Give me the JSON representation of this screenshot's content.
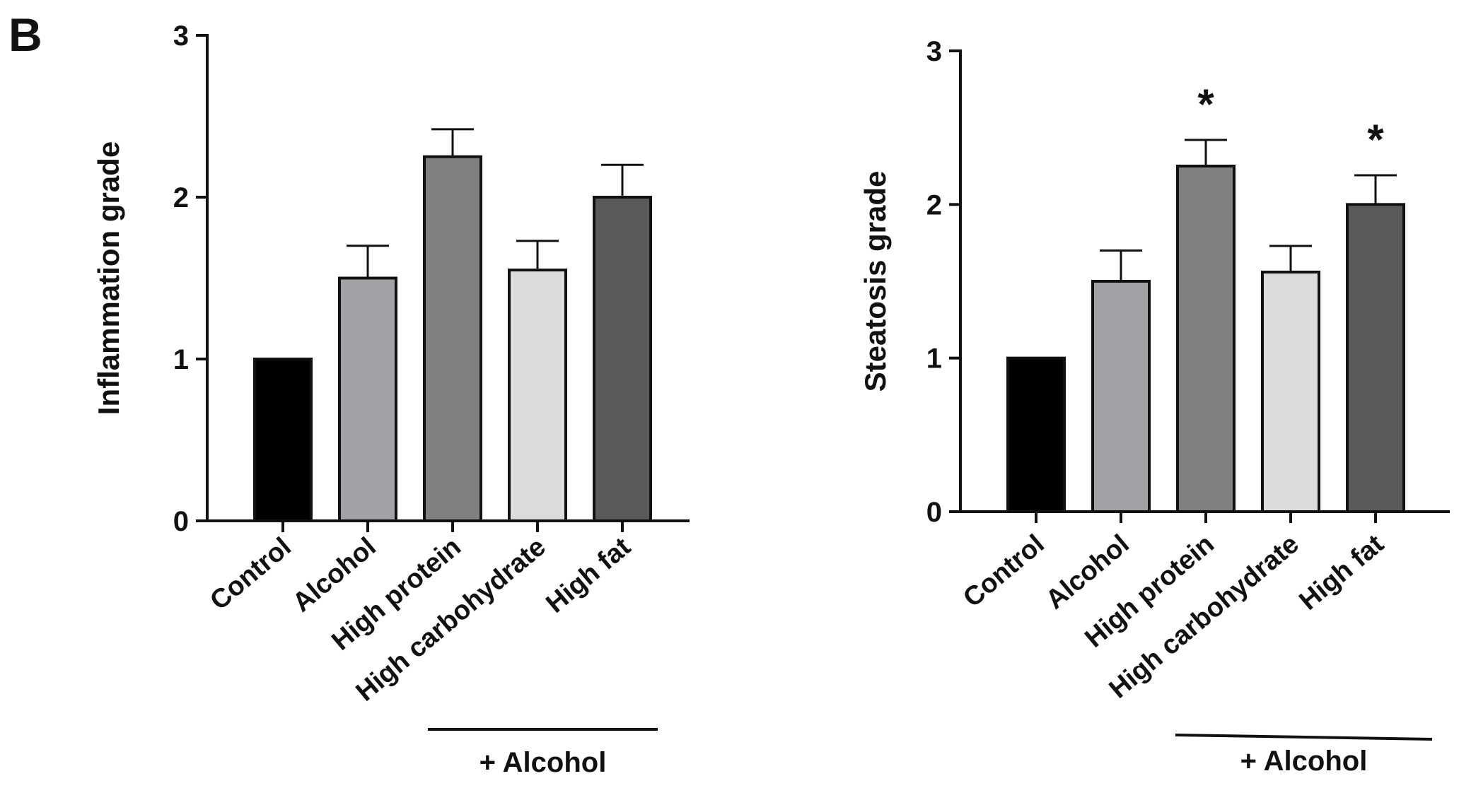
{
  "panel_label": "B",
  "chart_data": [
    {
      "type": "bar",
      "title": "",
      "xlabel": "",
      "ylabel": "Inflammation grade",
      "ylim": [
        0,
        3
      ],
      "yticks": [
        "0",
        "1",
        "2",
        "3"
      ],
      "categories": [
        "Control",
        "Alcohol",
        "High protein",
        "High carbohydrate",
        "High fat"
      ],
      "values": [
        1.0,
        1.5,
        2.25,
        1.55,
        2.0
      ],
      "errors": [
        0,
        0.2,
        0.17,
        0.18,
        0.2
      ],
      "colors": [
        "#000000",
        "#a2a1a6",
        "#808080",
        "#dcdcdc",
        "#5a5a5a"
      ],
      "significance": [
        "",
        "",
        "",
        "",
        ""
      ],
      "group_label": "+ Alcohol",
      "group_span": [
        "High protein",
        "High fat"
      ]
    },
    {
      "type": "bar",
      "title": "",
      "xlabel": "",
      "ylabel": "Steatosis grade",
      "ylim": [
        0,
        3
      ],
      "yticks": [
        "0",
        "1",
        "2",
        "3"
      ],
      "categories": [
        "Control",
        "Alcohol",
        "High protein",
        "High carbohydrate",
        "High fat"
      ],
      "values": [
        1.0,
        1.5,
        2.25,
        1.56,
        2.0
      ],
      "errors": [
        0,
        0.2,
        0.17,
        0.17,
        0.19
      ],
      "colors": [
        "#000000",
        "#a2a1a6",
        "#808080",
        "#dcdcdc",
        "#5a5a5a"
      ],
      "significance": [
        "",
        "",
        "*",
        "",
        "*"
      ],
      "group_label": "+ Alcohol",
      "group_span": [
        "High protein",
        "High fat"
      ]
    }
  ]
}
